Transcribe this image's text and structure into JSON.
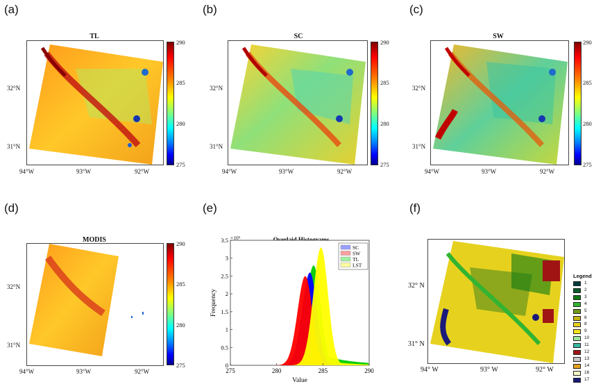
{
  "panels": {
    "a": {
      "label": "(a)",
      "title": "TL"
    },
    "b": {
      "label": "(b)",
      "title": "SC"
    },
    "c": {
      "label": "(c)",
      "title": "SW"
    },
    "d": {
      "label": "(d)",
      "title": "MODIS"
    },
    "e": {
      "label": "(e)",
      "title": "Overlaid Histograms"
    },
    "f": {
      "label": "(f)"
    }
  },
  "map_axes": {
    "lat_ticks": [
      "32°N",
      "31°N"
    ],
    "lon_ticks": [
      "94°W",
      "93°W",
      "92°W"
    ],
    "lat_ticks_f": [
      "32° N",
      "31° N"
    ],
    "lon_ticks_f": [
      "94° W",
      "93° W",
      "92° W"
    ]
  },
  "colorbar": {
    "ticks": [
      "290",
      "285",
      "280",
      "275"
    ]
  },
  "chart_data": {
    "type": "histogram",
    "title": "Overlaid Histograms",
    "xlabel": "Value",
    "ylabel": "Frequency",
    "y_exponent": "×10⁵",
    "xlim": [
      275,
      290
    ],
    "ylim": [
      0,
      3.5
    ],
    "x_ticks": [
      "275",
      "280",
      "285",
      "290"
    ],
    "y_ticks": [
      "0",
      "0.5",
      "1",
      "1.5",
      "2",
      "2.5",
      "3",
      "3.5"
    ],
    "series": [
      {
        "name": "SC",
        "color": "#0000ff",
        "peak_x": 283.6,
        "peak_y": 2.6
      },
      {
        "name": "SW",
        "color": "#ff0000",
        "peak_x": 283.1,
        "peak_y": 2.5
      },
      {
        "name": "TL",
        "color": "#00cc00",
        "peak_x": 284.0,
        "peak_y": 2.8
      },
      {
        "name": "LST",
        "color": "#ffff00",
        "peak_x": 284.8,
        "peak_y": 3.3
      }
    ]
  },
  "landcover_legend": {
    "title": "Legend",
    "classes": [
      {
        "id": "1",
        "color": "#003c3c"
      },
      {
        "id": "2",
        "color": "#0a5a2a"
      },
      {
        "id": "3",
        "color": "#0e7a14"
      },
      {
        "id": "4",
        "color": "#32b432"
      },
      {
        "id": "5",
        "color": "#6f9a1c"
      },
      {
        "id": "6",
        "color": "#c8b414"
      },
      {
        "id": "8",
        "color": "#e6d21e"
      },
      {
        "id": "9",
        "color": "#f5e61e"
      },
      {
        "id": "10",
        "color": "#9ee69e"
      },
      {
        "id": "11",
        "color": "#3cb4a0"
      },
      {
        "id": "12",
        "color": "#a01414"
      },
      {
        "id": "13",
        "color": "#c8c8c8"
      },
      {
        "id": "14",
        "color": "#e6a01e"
      },
      {
        "id": "16",
        "color": "#faf5c8"
      },
      {
        "id": "17",
        "color": "#1a1a7a"
      }
    ]
  }
}
